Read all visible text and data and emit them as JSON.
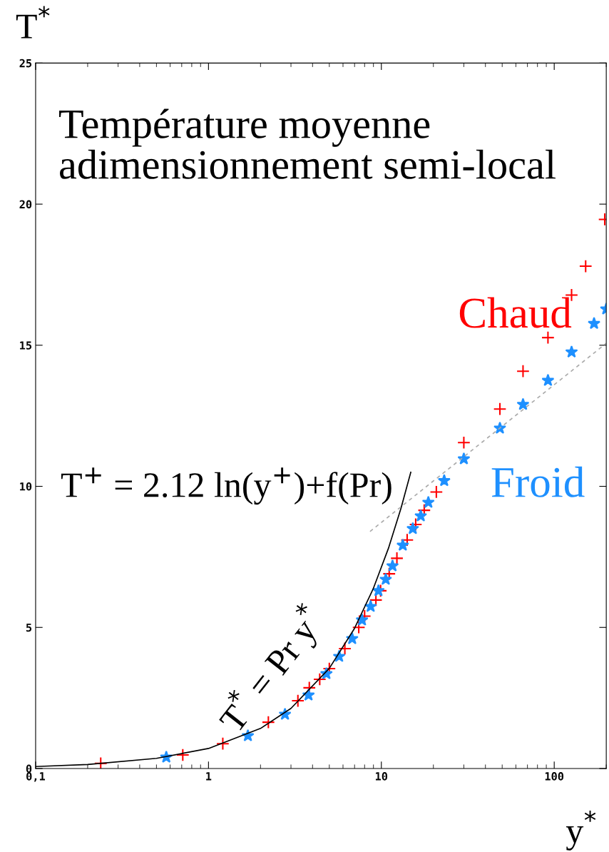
{
  "chart_data": {
    "type": "scatter",
    "title": "Température moyenne\nadimensionnement semi-local",
    "xlabel": "y$^{*}$",
    "ylabel": "T$^{*}$",
    "log": "x",
    "xlim": [
      0.1,
      200
    ],
    "xticks": [
      {
        "value": 0.1,
        "label": "0,1"
      },
      1,
      10,
      100
    ],
    "ylim": [
      0,
      25
    ],
    "yticks": [
      0,
      5,
      10,
      15,
      20,
      25
    ],
    "grid": false,
    "legend": false,
    "annotations": [
      "T$^{+}$ = 2.12 ln(y$^{+}$)+f(Pr)",
      "T$^{*}$ = Pr y$^{*}$"
    ],
    "series": [
      {
        "name": "Chaud",
        "color": "#ff0000",
        "marker": "cross",
        "x": [
          0.238,
          0.71,
          1.21,
          2.22,
          3.29,
          3.83,
          4.4,
          5.0,
          6.15,
          7.4,
          8.0,
          9.3,
          9.9,
          11.1,
          12.3,
          14.1,
          15.8,
          17.7,
          20.8,
          30,
          48.5,
          66,
          92,
          126,
          152,
          196
        ],
        "values": [
          0.18,
          0.48,
          0.88,
          1.64,
          2.4,
          2.86,
          3.16,
          3.54,
          4.25,
          5.0,
          5.4,
          5.97,
          6.3,
          6.9,
          7.45,
          8.1,
          8.65,
          9.15,
          9.8,
          11.55,
          12.74,
          14.08,
          15.27,
          16.78,
          17.8,
          19.46
        ]
      },
      {
        "name": "Froid",
        "color": "#1e90ff",
        "marker": "star",
        "x": [
          0.57,
          1.69,
          2.77,
          3.79,
          4.81,
          5.7,
          6.78,
          7.73,
          8.67,
          9.62,
          10.6,
          11.6,
          13.3,
          15.2,
          16.9,
          18.7,
          23.1,
          30,
          48.5,
          66,
          92,
          126,
          170,
          200
        ],
        "values": [
          0.4,
          1.16,
          1.92,
          2.6,
          3.36,
          3.97,
          4.6,
          5.26,
          5.74,
          6.3,
          6.7,
          7.18,
          7.91,
          8.5,
          8.95,
          9.43,
          10.2,
          10.97,
          12.06,
          12.9,
          13.75,
          14.76,
          15.77,
          16.28
        ]
      },
      {
        "type": "line",
        "color": "#000000",
        "line_style": "solid",
        "marker": "none",
        "x": [
          0.1,
          0.2,
          0.5,
          1,
          2,
          3,
          5,
          7,
          9,
          11,
          13,
          14.8
        ],
        "values": [
          0.07,
          0.14,
          0.36,
          0.71,
          1.42,
          2.13,
          3.55,
          4.97,
          6.39,
          7.81,
          9.23,
          10.5
        ]
      },
      {
        "type": "line",
        "color": "#aaaaaa",
        "line_style": "dashed",
        "marker": "none",
        "x": [
          8.6,
          20,
          50,
          100,
          200
        ],
        "values": [
          8.4,
          10.19,
          12.13,
          13.6,
          15.07
        ]
      }
    ]
  }
}
